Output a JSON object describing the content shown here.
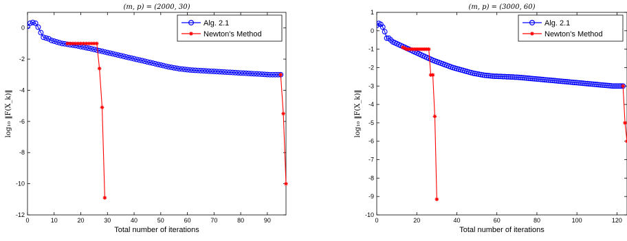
{
  "chart_data": [
    {
      "type": "line",
      "title": "(m, p) = (2000, 30)",
      "xlabel": "Total number of iterations",
      "ylabel": "log₁₀ ‖F(X_k)‖",
      "xlim": [
        0,
        97
      ],
      "ylim": [
        -12,
        1
      ],
      "xticks": [
        0,
        10,
        20,
        30,
        40,
        50,
        60,
        70,
        80,
        90
      ],
      "yticks": [
        0,
        -2,
        -4,
        -6,
        -8,
        -10,
        -12
      ],
      "legend_position": "top-right",
      "grid": false,
      "series": [
        {
          "name": "Alg. 2.1",
          "color": "#0000ff",
          "marker": "circle",
          "x": [
            0,
            1,
            2,
            3,
            4,
            5,
            6,
            7,
            8,
            9,
            10,
            11,
            12,
            13,
            14,
            15,
            16,
            17,
            18,
            19,
            20,
            21,
            22,
            23,
            24,
            25,
            26,
            27,
            28,
            29,
            30,
            31,
            32,
            33,
            34,
            35,
            36,
            37,
            38,
            39,
            40,
            41,
            42,
            43,
            44,
            45,
            46,
            47,
            48,
            49,
            50,
            51,
            52,
            53,
            54,
            55,
            56,
            57,
            58,
            59,
            60,
            61,
            62,
            63,
            64,
            65,
            66,
            67,
            68,
            69,
            70,
            71,
            72,
            73,
            74,
            75,
            76,
            77,
            78,
            79,
            80,
            81,
            82,
            83,
            84,
            85,
            86,
            87,
            88,
            89,
            90,
            91,
            92,
            93,
            94,
            95
          ],
          "y": [
            0.1,
            0.3,
            0.35,
            0.3,
            0.05,
            -0.3,
            -0.6,
            -0.65,
            -0.7,
            -0.8,
            -0.85,
            -0.9,
            -0.95,
            -1.0,
            -1.02,
            -1.05,
            -1.08,
            -1.1,
            -1.13,
            -1.16,
            -1.2,
            -1.23,
            -1.27,
            -1.3,
            -1.34,
            -1.38,
            -1.42,
            -1.46,
            -1.5,
            -1.54,
            -1.58,
            -1.62,
            -1.66,
            -1.7,
            -1.74,
            -1.78,
            -1.82,
            -1.86,
            -1.9,
            -1.94,
            -1.98,
            -2.02,
            -2.06,
            -2.1,
            -2.14,
            -2.18,
            -2.22,
            -2.26,
            -2.3,
            -2.34,
            -2.38,
            -2.42,
            -2.46,
            -2.5,
            -2.53,
            -2.56,
            -2.59,
            -2.62,
            -2.64,
            -2.66,
            -2.68,
            -2.7,
            -2.71,
            -2.72,
            -2.73,
            -2.74,
            -2.75,
            -2.76,
            -2.77,
            -2.78,
            -2.79,
            -2.8,
            -2.81,
            -2.82,
            -2.83,
            -2.84,
            -2.85,
            -2.86,
            -2.87,
            -2.88,
            -2.89,
            -2.9,
            -2.91,
            -2.92,
            -2.93,
            -2.94,
            -2.95,
            -2.96,
            -2.97,
            -2.98,
            -2.99,
            -3.0,
            -3.0,
            -3.0,
            -3.0,
            -3.0
          ]
        },
        {
          "name": "Newton's Method",
          "color": "#ff0000",
          "marker": "star",
          "segments": [
            {
              "x": [
                15,
                16,
                17,
                18,
                19,
                20,
                21,
                22,
                23,
                24,
                25,
                26,
                27,
                28,
                29
              ],
              "y": [
                -1.0,
                -1.0,
                -1.0,
                -1.0,
                -1.0,
                -1.0,
                -1.0,
                -1.0,
                -1.0,
                -1.0,
                -1.0,
                -1.0,
                -2.6,
                -5.1,
                -10.9
              ]
            },
            {
              "x": [
                95,
                96,
                97
              ],
              "y": [
                -3.0,
                -5.5,
                -10.0
              ]
            }
          ]
        }
      ]
    },
    {
      "type": "line",
      "title": "(m, p) = (3000, 60)",
      "xlabel": "Total number of iterations",
      "ylabel": "log₁₀ ‖F(X_k)‖",
      "xlim": [
        0,
        125
      ],
      "ylim": [
        -10,
        1
      ],
      "xticks": [
        0,
        20,
        40,
        60,
        80,
        100,
        120
      ],
      "yticks": [
        1,
        0,
        -1,
        -2,
        -3,
        -4,
        -5,
        -6,
        -7,
        -8,
        -9,
        -10
      ],
      "legend_position": "top-right",
      "grid": false,
      "series": [
        {
          "name": "Alg. 2.1",
          "color": "#0000ff",
          "marker": "circle",
          "x": [
            0,
            1,
            2,
            3,
            4,
            5,
            6,
            7,
            8,
            9,
            10,
            11,
            12,
            13,
            14,
            15,
            16,
            17,
            18,
            19,
            20,
            21,
            22,
            23,
            24,
            25,
            26,
            27,
            28,
            29,
            30,
            31,
            32,
            33,
            34,
            35,
            36,
            37,
            38,
            39,
            40,
            41,
            42,
            43,
            44,
            45,
            46,
            47,
            48,
            49,
            50,
            51,
            52,
            53,
            54,
            55,
            56,
            57,
            58,
            59,
            60,
            61,
            62,
            63,
            64,
            65,
            66,
            67,
            68,
            69,
            70,
            71,
            72,
            73,
            74,
            75,
            76,
            77,
            78,
            79,
            80,
            81,
            82,
            83,
            84,
            85,
            86,
            87,
            88,
            89,
            90,
            91,
            92,
            93,
            94,
            95,
            96,
            97,
            98,
            99,
            100,
            101,
            102,
            103,
            104,
            105,
            106,
            107,
            108,
            109,
            110,
            111,
            112,
            113,
            114,
            115,
            116,
            117,
            118,
            119,
            120,
            121,
            122,
            123
          ],
          "y": [
            0.3,
            0.4,
            0.35,
            0.2,
            -0.05,
            -0.4,
            -0.4,
            -0.5,
            -0.6,
            -0.65,
            -0.7,
            -0.75,
            -0.8,
            -0.85,
            -0.9,
            -0.95,
            -1.0,
            -1.05,
            -1.1,
            -1.15,
            -1.2,
            -1.25,
            -1.3,
            -1.35,
            -1.4,
            -1.45,
            -1.5,
            -1.55,
            -1.6,
            -1.64,
            -1.68,
            -1.72,
            -1.76,
            -1.8,
            -1.84,
            -1.88,
            -1.92,
            -1.96,
            -2.0,
            -2.03,
            -2.06,
            -2.09,
            -2.12,
            -2.15,
            -2.18,
            -2.21,
            -2.24,
            -2.27,
            -2.3,
            -2.32,
            -2.34,
            -2.36,
            -2.38,
            -2.4,
            -2.42,
            -2.43,
            -2.44,
            -2.45,
            -2.46,
            -2.47,
            -2.47,
            -2.48,
            -2.48,
            -2.49,
            -2.49,
            -2.5,
            -2.5,
            -2.51,
            -2.51,
            -2.52,
            -2.52,
            -2.53,
            -2.54,
            -2.55,
            -2.56,
            -2.57,
            -2.58,
            -2.59,
            -2.6,
            -2.61,
            -2.62,
            -2.63,
            -2.64,
            -2.65,
            -2.66,
            -2.67,
            -2.68,
            -2.69,
            -2.7,
            -2.71,
            -2.72,
            -2.73,
            -2.74,
            -2.75,
            -2.76,
            -2.77,
            -2.78,
            -2.79,
            -2.8,
            -2.81,
            -2.82,
            -2.83,
            -2.84,
            -2.85,
            -2.86,
            -2.87,
            -2.88,
            -2.89,
            -2.9,
            -2.91,
            -2.92,
            -2.93,
            -2.94,
            -2.95,
            -2.96,
            -2.97,
            -2.98,
            -2.99,
            -3.0,
            -3.0,
            -3.0,
            -3.0,
            -3.0,
            -3.0
          ]
        },
        {
          "name": "Newton's Method",
          "color": "#ff0000",
          "marker": "star",
          "segments": [
            {
              "x": [
                13,
                14,
                15,
                16,
                17,
                18,
                19,
                20,
                21,
                22,
                23,
                24,
                25,
                26,
                27,
                28,
                29,
                30
              ],
              "y": [
                -0.9,
                -0.95,
                -1.0,
                -1.0,
                -1.0,
                -1.0,
                -1.0,
                -1.0,
                -1.0,
                -1.0,
                -1.0,
                -1.0,
                -1.0,
                -1.0,
                -2.4,
                -2.4,
                -4.65,
                -9.15
              ]
            },
            {
              "x": [
                123,
                124,
                125
              ],
              "y": [
                -3.0,
                -5.0,
                -6.0
              ]
            }
          ]
        }
      ]
    }
  ]
}
